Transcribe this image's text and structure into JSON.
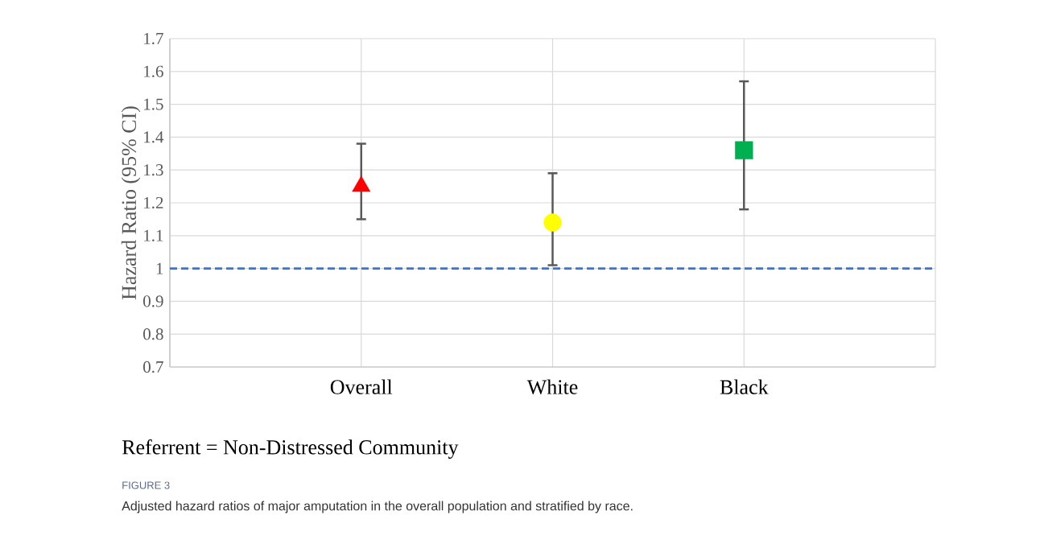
{
  "chart_data": {
    "type": "scatter",
    "categories": [
      "Overall",
      "White",
      "Black"
    ],
    "ylabel": "Hazard Ratio (95% CI)",
    "ylim": [
      0.7,
      1.7
    ],
    "yticks": [
      0.7,
      0.8,
      0.9,
      1,
      1.1,
      1.2,
      1.3,
      1.4,
      1.5,
      1.6,
      1.7
    ],
    "grid": true,
    "series": [
      {
        "color": "#ff0000",
        "marker": "triangle",
        "values": [
          1.25,
          null,
          null
        ],
        "errors": [
          [
            1.15,
            1.38
          ],
          null,
          null
        ]
      },
      {
        "color": "#ffff00",
        "marker": "circle",
        "values": [
          null,
          1.14,
          null
        ],
        "errors": [
          null,
          [
            1.01,
            1.29
          ],
          null
        ]
      },
      {
        "color": "#00b050",
        "marker": "square",
        "values": [
          null,
          null,
          1.36
        ],
        "errors": [
          null,
          null,
          [
            1.18,
            1.57
          ]
        ]
      }
    ],
    "ref_lines": [
      {
        "axis": "y",
        "value": 1,
        "color": "#4472c4",
        "line_style": "dashed"
      }
    ],
    "annotations": [
      "Referrent = Non-Distressed Community",
      "FIGURE 3",
      "Adjusted hazard ratios of major amputation in the overall population and stratified by race."
    ]
  }
}
